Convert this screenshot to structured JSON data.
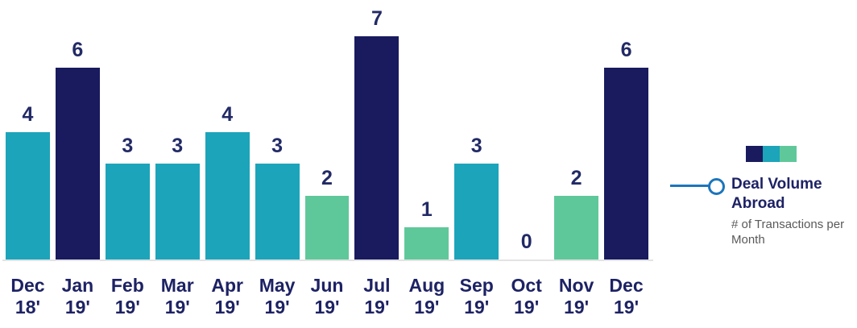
{
  "chart_data": {
    "type": "bar",
    "title": "Deal Volume Abroad",
    "subtitle": "# of Transactions per Month",
    "categories": [
      "Dec 18'",
      "Jan 19'",
      "Feb 19'",
      "Mar 19'",
      "Apr 19'",
      "May 19'",
      "Jun 19'",
      "Jul 19'",
      "Aug 19'",
      "Sep 19'",
      "Oct 19'",
      "Nov 19'",
      "Dec 19'"
    ],
    "values": [
      4,
      6,
      3,
      3,
      4,
      3,
      2,
      7,
      1,
      3,
      0,
      2,
      6
    ],
    "points": [
      {
        "month": "Dec",
        "year": "18'",
        "value": 4,
        "color": "teal"
      },
      {
        "month": "Jan",
        "year": "19'",
        "value": 6,
        "color": "navy"
      },
      {
        "month": "Feb",
        "year": "19'",
        "value": 3,
        "color": "teal"
      },
      {
        "month": "Mar",
        "year": "19'",
        "value": 3,
        "color": "teal"
      },
      {
        "month": "Apr",
        "year": "19'",
        "value": 4,
        "color": "teal"
      },
      {
        "month": "May",
        "year": "19'",
        "value": 3,
        "color": "teal"
      },
      {
        "month": "Jun",
        "year": "19'",
        "value": 2,
        "color": "green"
      },
      {
        "month": "Jul",
        "year": "19'",
        "value": 7,
        "color": "navy"
      },
      {
        "month": "Aug",
        "year": "19'",
        "value": 1,
        "color": "green"
      },
      {
        "month": "Sep",
        "year": "19'",
        "value": 3,
        "color": "teal"
      },
      {
        "month": "Oct",
        "year": "19'",
        "value": 0,
        "color": "none"
      },
      {
        "month": "Nov",
        "year": "19'",
        "value": 2,
        "color": "green"
      },
      {
        "month": "Dec",
        "year": "19'",
        "value": 6,
        "color": "navy"
      }
    ],
    "palette": {
      "navy": "#191b5e",
      "teal": "#1ca4ba",
      "green": "#5fc89a",
      "none": "transparent"
    },
    "value_label_color": "#222a66",
    "axis_label_color": "#1d2264",
    "baseline_color": "#e3e3e3",
    "ylim": [
      0,
      7
    ],
    "grid": false,
    "value_labels": true,
    "legend_position": "right"
  },
  "legend": {
    "title": "Deal Volume Abroad",
    "subtitle": "# of Transactions per Month",
    "connector_color": "#1c75bc",
    "swatches": [
      {
        "name": "navy-swatch",
        "color": "#191b5e"
      },
      {
        "name": "teal-swatch",
        "color": "#1ca4ba"
      },
      {
        "name": "green-swatch",
        "color": "#5fc89a"
      }
    ]
  }
}
